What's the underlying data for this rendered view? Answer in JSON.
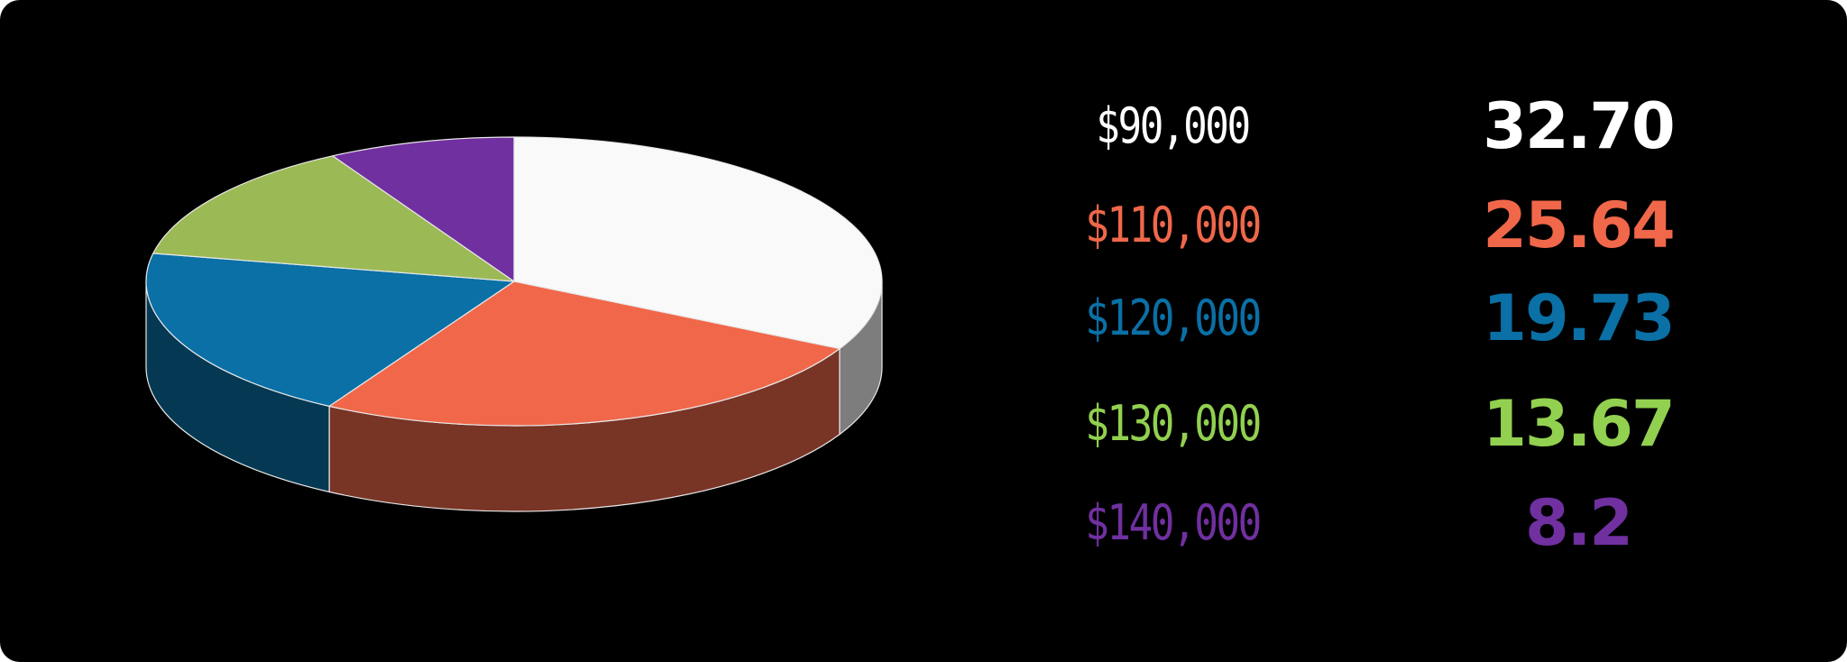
{
  "chart_data": {
    "type": "pie",
    "title": "",
    "categories": [
      "$90,000",
      "$110,000",
      "$120,000",
      "$130,000",
      "$140,000"
    ],
    "values": [
      32.7,
      25.64,
      19.73,
      13.67,
      8.2
    ],
    "value_labels": [
      "32.70",
      "25.64",
      "19.73",
      "13.67",
      "8.2"
    ],
    "colors": [
      "#f9f9f9",
      "#f0674a",
      "#0a70a6",
      "#9bb955",
      "#7030a0"
    ],
    "label_colors": [
      "#ffffff",
      "#f0674a",
      "#0a70a6",
      "#92d050",
      "#7030a0"
    ],
    "style": "3d",
    "legend_placement": "right",
    "background": "#000000"
  }
}
